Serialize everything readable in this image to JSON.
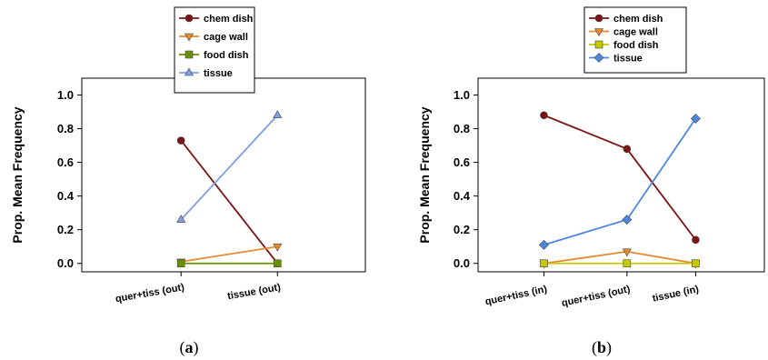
{
  "chart_data": [
    {
      "panel_label": "(a)",
      "type": "line",
      "ylabel": "Prop. Mean Frequency",
      "ylim": [
        -0.05,
        1.1
      ],
      "yticks": [
        "0.0",
        "0.2",
        "0.4",
        "0.6",
        "0.8",
        "1.0"
      ],
      "categories": [
        "quer+tiss (out)",
        "tissue (out)"
      ],
      "legend_position": "top",
      "series": [
        {
          "name": "chem dish",
          "values": [
            0.73,
            0.0
          ],
          "color": "#7b1414",
          "marker": "circle"
        },
        {
          "name": "cage wall",
          "values": [
            0.01,
            0.1
          ],
          "color": "#e68a2e",
          "marker": "triangle-down"
        },
        {
          "name": "food dish",
          "values": [
            0.0,
            0.0
          ],
          "color": "#6b8e00",
          "marker": "square"
        },
        {
          "name": "tissue",
          "values": [
            0.26,
            0.88
          ],
          "color": "#7f9fe0",
          "marker": "triangle-up"
        }
      ]
    },
    {
      "panel_label": "(b)",
      "type": "line",
      "ylabel": "Prop. Mean Frequency",
      "ylim": [
        -0.05,
        1.1
      ],
      "yticks": [
        "0.0",
        "0.2",
        "0.4",
        "0.6",
        "0.8",
        "1.0"
      ],
      "categories": [
        "quer+tiss (in)",
        "quer+tiss (out)",
        "tissue (in)"
      ],
      "legend_position": "top",
      "series": [
        {
          "name": "chem dish",
          "values": [
            0.88,
            0.68,
            0.14
          ],
          "color": "#7b1414",
          "marker": "circle"
        },
        {
          "name": "cage wall",
          "values": [
            0.0,
            0.07,
            0.0
          ],
          "color": "#e68a2e",
          "marker": "triangle-down"
        },
        {
          "name": "food dish",
          "values": [
            0.0,
            0.0,
            0.0
          ],
          "color": "#c8c800",
          "marker": "square"
        },
        {
          "name": "tissue",
          "values": [
            0.11,
            0.26,
            0.86
          ],
          "color": "#4f86e0",
          "marker": "diamond"
        }
      ]
    }
  ]
}
